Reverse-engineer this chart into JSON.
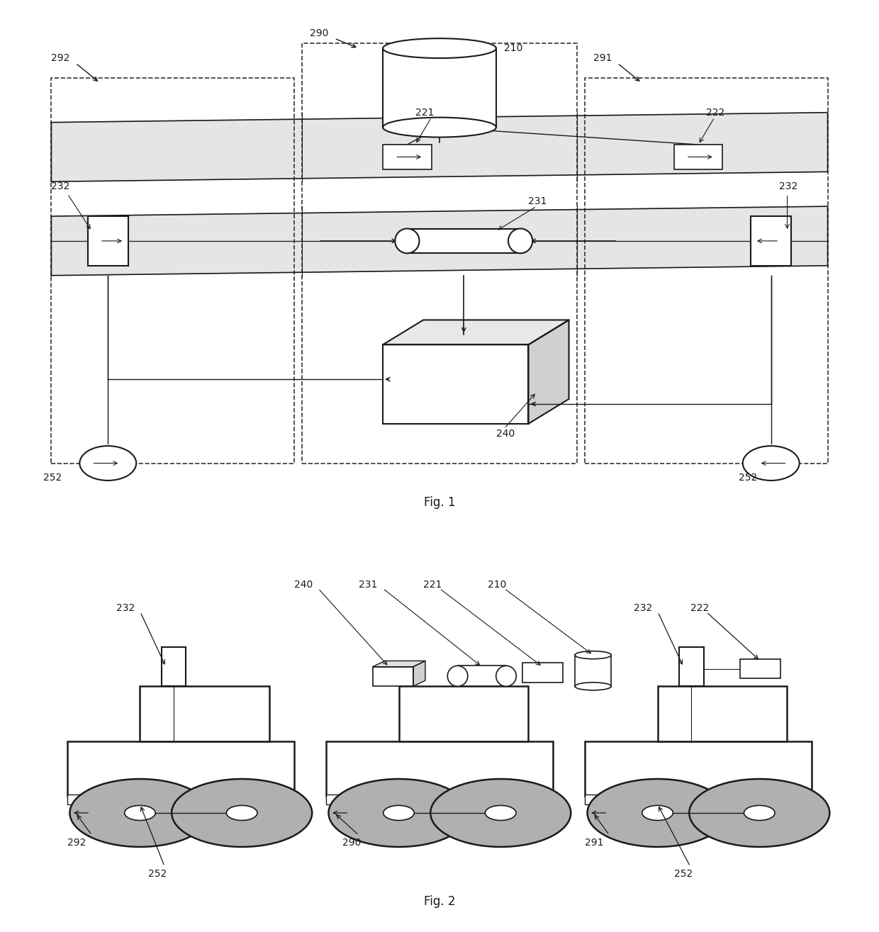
{
  "fig_title1": "Fig. 1",
  "fig_title2": "Fig. 2",
  "bg_color": "#ffffff",
  "line_color": "#1a1a1a",
  "shaded_color": "#cccccc"
}
